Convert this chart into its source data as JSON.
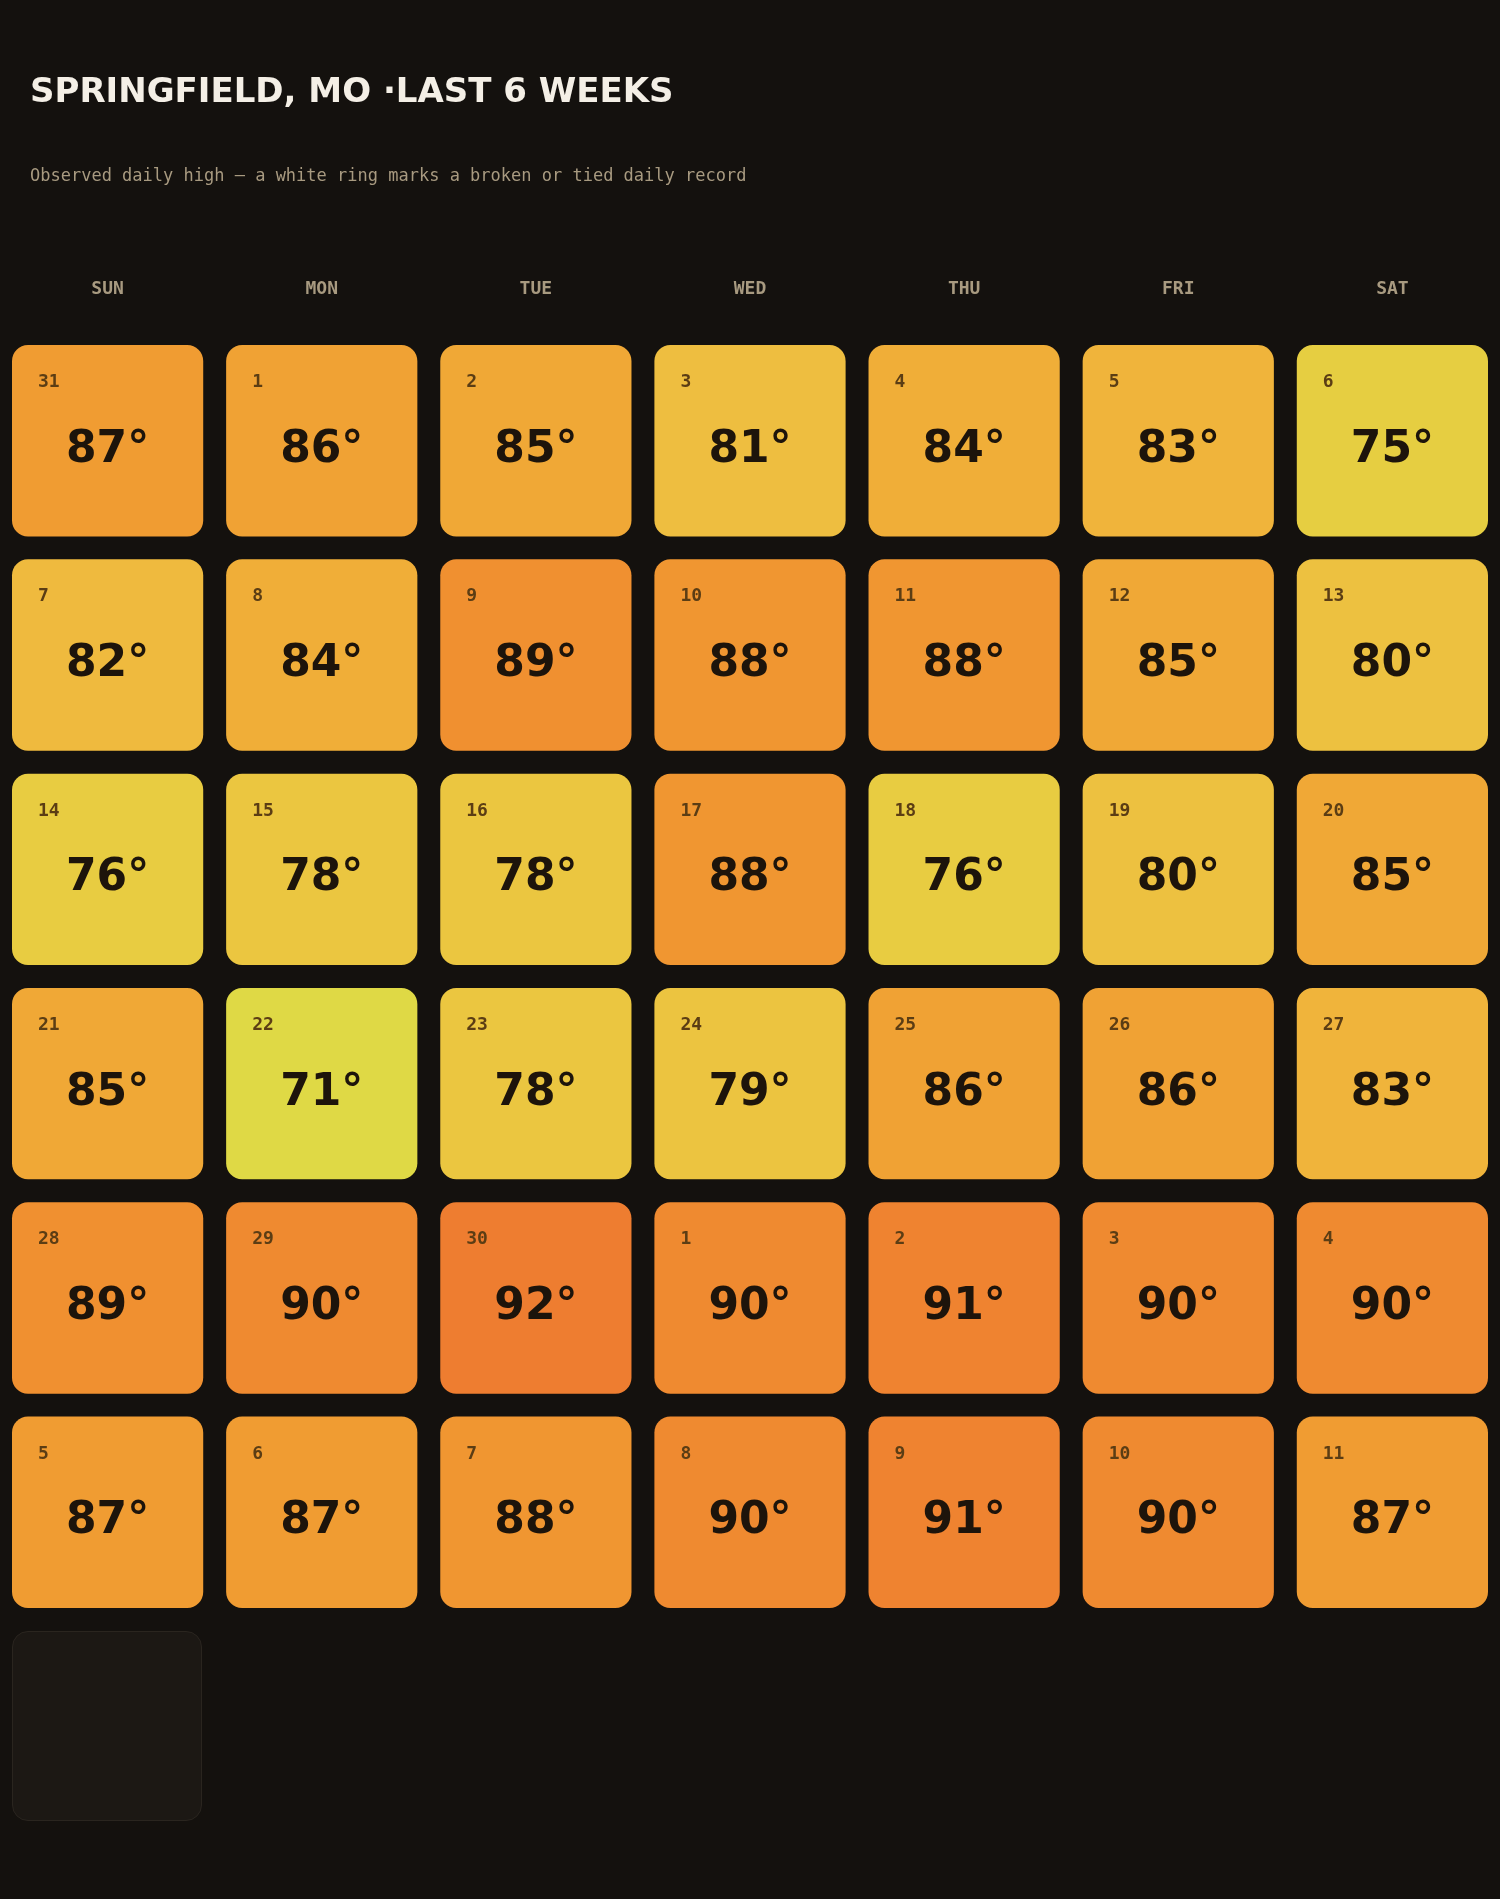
{
  "chart_data": {
    "type": "heatmap",
    "title": "SPRINGFIELD, MO ·LAST 6 WEEKS",
    "subtitle": "Observed daily high — a white ring marks a broken or tied daily record",
    "tick_labels": "x",
    "categories": [
      "SUN",
      "MON",
      "TUE",
      "WED",
      "THU",
      "FRI",
      "SAT"
    ],
    "y_categories": [
      null,
      null,
      null,
      null,
      null,
      null
    ],
    "cells": [
      [
        87,
        86,
        85,
        81,
        84,
        83,
        75
      ],
      [
        82,
        84,
        89,
        88,
        88,
        85,
        80
      ],
      [
        76,
        78,
        78,
        88,
        76,
        80,
        85
      ],
      [
        85,
        71,
        78,
        79,
        86,
        86,
        83
      ],
      [
        89,
        90,
        92,
        90,
        91,
        90,
        90
      ],
      [
        87,
        87,
        88,
        90,
        91,
        90,
        87
      ]
    ],
    "cell_labels": [
      [
        "87°",
        "86°",
        "85°",
        "81°",
        "84°",
        "83°",
        "75°"
      ],
      [
        "82°",
        "84°",
        "89°",
        "88°",
        "88°",
        "85°",
        "80°"
      ],
      [
        "76°",
        "78°",
        "78°",
        "88°",
        "76°",
        "80°",
        "85°"
      ],
      [
        "85°",
        "71°",
        "78°",
        "79°",
        "86°",
        "86°",
        "83°"
      ],
      [
        "89°",
        "90°",
        "92°",
        "90°",
        "91°",
        "90°",
        "90°"
      ],
      [
        "87°",
        "87°",
        "88°",
        "90°",
        "91°",
        "90°",
        "87°"
      ]
    ],
    "annotations": [
      "31",
      "1",
      "2",
      "3",
      "4",
      "5",
      "6",
      "7",
      "8",
      "9",
      "10",
      "11",
      "12",
      "13",
      "14",
      "15",
      "16",
      "17",
      "18",
      "19",
      "20",
      "21",
      "22",
      "23",
      "24",
      "25",
      "26",
      "27",
      "28",
      "29",
      "30",
      "1",
      "2",
      "3",
      "4",
      "5",
      "6",
      "7",
      "8",
      "9",
      "10",
      "11"
    ]
  }
}
